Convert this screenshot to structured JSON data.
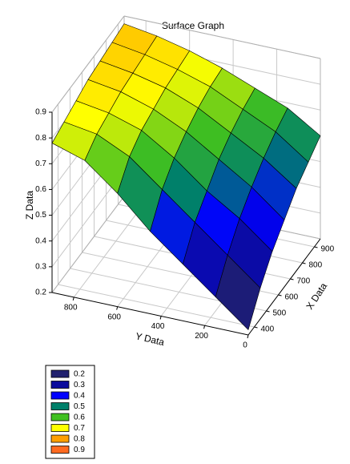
{
  "chart_data": {
    "type": "surface",
    "title": "Surface Graph",
    "x_label": "X Data",
    "y_label": "Y Data",
    "z_label": "Z Data",
    "x": [
      350,
      450,
      550,
      650,
      750,
      850,
      950
    ],
    "y": [
      0,
      150,
      300,
      450,
      600,
      750,
      900
    ],
    "z": [
      [
        0.22,
        0.32,
        0.4,
        0.46,
        0.52,
        0.56,
        0.6
      ],
      [
        0.32,
        0.42,
        0.5,
        0.56,
        0.61,
        0.65,
        0.68
      ],
      [
        0.42,
        0.52,
        0.58,
        0.64,
        0.68,
        0.71,
        0.73
      ],
      [
        0.52,
        0.62,
        0.68,
        0.72,
        0.75,
        0.77,
        0.78
      ],
      [
        0.64,
        0.72,
        0.76,
        0.78,
        0.8,
        0.81,
        0.82
      ],
      [
        0.74,
        0.78,
        0.8,
        0.82,
        0.83,
        0.84,
        0.85
      ],
      [
        0.78,
        0.8,
        0.82,
        0.84,
        0.85,
        0.86,
        0.87
      ]
    ],
    "xlim": [
      350,
      950
    ],
    "ylim": [
      0,
      900
    ],
    "zlim": [
      0.2,
      0.9
    ],
    "xticks": [
      400,
      500,
      600,
      700,
      800,
      900
    ],
    "yticks": [
      0,
      200,
      400,
      600,
      800
    ],
    "zticks": [
      0.2,
      0.3,
      0.4,
      0.5,
      0.6,
      0.7,
      0.8,
      0.9
    ],
    "grid": true,
    "colorscale": {
      "values": [
        0.2,
        0.3,
        0.4,
        0.5,
        0.6,
        0.7,
        0.8,
        0.9
      ],
      "colors": [
        "#20206e",
        "#0c0c9c",
        "#0000ff",
        "#00806a",
        "#40c020",
        "#ffff00",
        "#ffa000",
        "#ff6a20"
      ]
    }
  }
}
